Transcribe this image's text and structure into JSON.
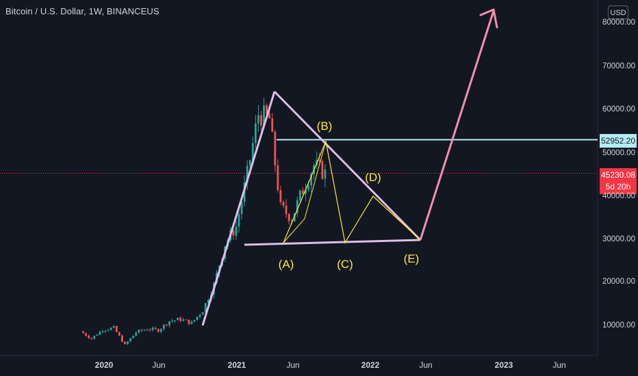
{
  "title": "Bitcoin / U.S. Dollar, 1W, BINANCEUS",
  "currency_button": "USD",
  "price_labels": {
    "horizontal_level": "52952.20",
    "last_price": "45230.08",
    "countdown": "5d 20h"
  },
  "y_axis_labels": [
    "80000.00",
    "70000.00",
    "60000.00",
    "50000.00",
    "40000.00",
    "30000.00",
    "20000.00",
    "10000.00"
  ],
  "x_axis_labels": [
    "2020",
    "Jun",
    "2021",
    "Jun",
    "2022",
    "Jun",
    "2023",
    "Jun"
  ],
  "wave_labels": [
    "(A)",
    "(B)",
    "(C)",
    "(D)",
    "(E)"
  ],
  "colors": {
    "background": "#131722",
    "bull_candle": "#26a69a",
    "bear_candle": "#ef5350",
    "triangle_lines": "#e1bee7",
    "projection_arrow": "#f48fb1",
    "wave_path": "#ffeb3b",
    "level_line": "#b2ebf2",
    "last_price_line": "#f23645"
  },
  "chart_data": {
    "type": "candlestick",
    "symbol": "Bitcoin / U.S. Dollar",
    "interval": "1W",
    "exchange": "BINANCEUS",
    "last_price": 45230.08,
    "horizontal_level": 52952.2,
    "ylim": [
      0,
      85000
    ],
    "weekly_closes": [
      [
        "2019-11",
        8900
      ],
      [
        "2019-12",
        7300
      ],
      [
        "2020-01",
        9300
      ],
      [
        "2020-02",
        9700
      ],
      [
        "2020-03",
        5800
      ],
      [
        "2020-04",
        8700
      ],
      [
        "2020-05",
        9500
      ],
      [
        "2020-06",
        9200
      ],
      [
        "2020-07",
        11300
      ],
      [
        "2020-08",
        11700
      ],
      [
        "2020-09",
        10800
      ],
      [
        "2020-10",
        13800
      ],
      [
        "2020-11",
        19600
      ],
      [
        "2020-12",
        29000
      ],
      [
        "2021-01",
        33000
      ],
      [
        "2021-02",
        45000
      ],
      [
        "2021-03",
        58900
      ],
      [
        "2021-04",
        57700
      ],
      [
        "2021-05",
        37300
      ],
      [
        "2021-06",
        35000
      ],
      [
        "2021-07",
        41500
      ],
      [
        "2021-08",
        47100
      ],
      [
        "2021-09",
        45230
      ]
    ],
    "annotations": [
      {
        "label": "(A)",
        "price": 29000
      },
      {
        "label": "(B)",
        "price": 52000
      },
      {
        "label": "(C)",
        "price": 29000
      },
      {
        "label": "(D)",
        "price": 40000
      },
      {
        "label": "(E)",
        "price": 29500
      }
    ],
    "projection_target": 82000
  }
}
